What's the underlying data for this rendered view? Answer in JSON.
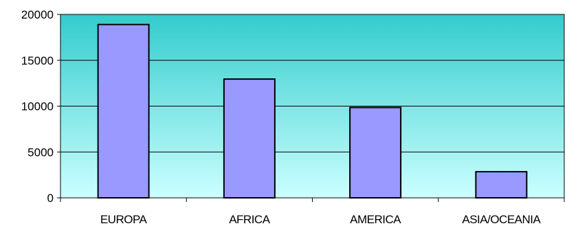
{
  "chart_data": {
    "type": "bar",
    "categories": [
      "EUROPA",
      "AFRICA",
      "AMERICA",
      "ASIA/OCEANIA"
    ],
    "values": [
      18900,
      12950,
      9850,
      2850
    ],
    "title": "",
    "xlabel": "",
    "ylabel": "",
    "ylim": [
      0,
      20000
    ],
    "yticks": [
      "0",
      "5000",
      "10000",
      "15000",
      "20000"
    ],
    "grid": true,
    "legend": "none",
    "colors": {
      "bar_fill": "#9999ff",
      "bar_stroke": "#000000",
      "plot_bg_top": "#33cccc",
      "plot_bg_bottom": "#ccffff",
      "gridline": "#000000"
    }
  }
}
